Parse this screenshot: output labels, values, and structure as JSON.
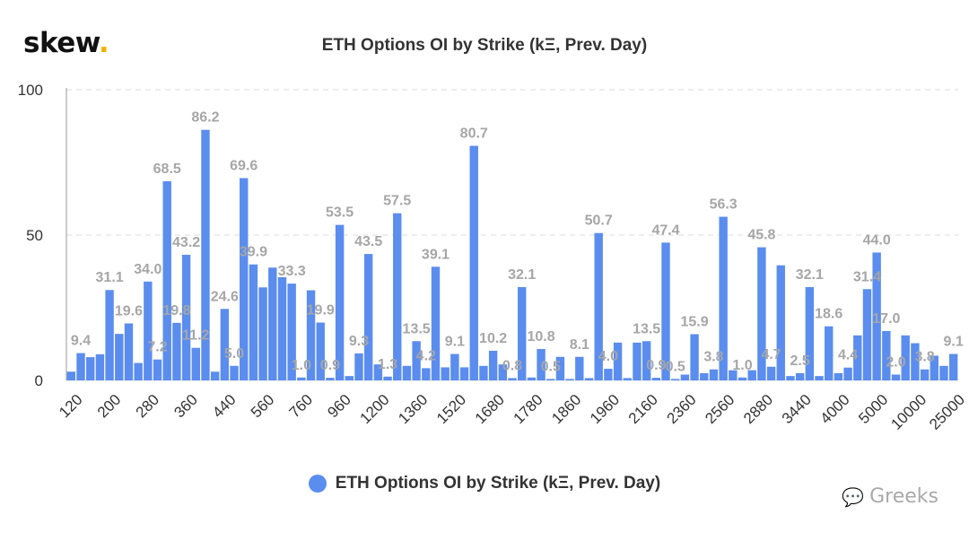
{
  "brand": {
    "name": "skew",
    "dot": "."
  },
  "watermark": {
    "icon": "wechat-icon",
    "text": "Greeks"
  },
  "colors": {
    "bar": "#5b8def",
    "label": "#a6a6a6",
    "axis": "#333333",
    "grid": "#dddddd"
  },
  "chart_data": {
    "type": "bar",
    "title": "ETH Options OI by Strike (kΞ, Prev. Day)",
    "xlabel": "",
    "ylabel": "",
    "ylim": [
      0,
      100
    ],
    "yticks": [
      0,
      50,
      100
    ],
    "grid": "horizontal dashed",
    "legend": "bottom-center",
    "series": [
      {
        "name": "ETH Options OI by Strike (kΞ, Prev. Day)",
        "values": [
          3.0,
          9.4,
          8.0,
          9.0,
          31.1,
          16.0,
          19.6,
          6.0,
          34.0,
          7.2,
          68.5,
          19.8,
          43.2,
          11.2,
          86.2,
          3.0,
          24.6,
          5.0,
          69.6,
          39.9,
          32.0,
          38.8,
          35.5,
          33.3,
          1.0,
          31.0,
          19.9,
          0.9,
          53.5,
          1.5,
          9.3,
          43.5,
          5.5,
          1.3,
          57.5,
          5.0,
          13.5,
          4.2,
          39.1,
          4.5,
          9.1,
          4.5,
          80.7,
          5.0,
          10.2,
          5.5,
          0.8,
          32.1,
          1.0,
          10.8,
          0.5,
          8.1,
          0.5,
          8.1,
          0.8,
          50.7,
          4.0,
          13.0,
          0.8,
          13.0,
          13.5,
          0.9,
          47.4,
          0.5,
          2.0,
          15.9,
          2.5,
          3.8,
          56.3,
          3.5,
          1.0,
          3.5,
          45.8,
          4.7,
          39.6,
          1.5,
          2.5,
          32.1,
          1.5,
          18.6,
          2.5,
          4.4,
          15.5,
          31.4,
          44.0,
          17.0,
          2.0,
          15.5,
          12.8,
          3.8,
          8.5,
          5.0,
          9.1
        ]
      }
    ],
    "data_labels": [
      {
        "i": 1,
        "text": "9.4"
      },
      {
        "i": 4,
        "text": "31.1"
      },
      {
        "i": 6,
        "text": "19.6"
      },
      {
        "i": 8,
        "text": "34.0"
      },
      {
        "i": 9,
        "text": "7.2"
      },
      {
        "i": 10,
        "text": "68.5"
      },
      {
        "i": 11,
        "text": "19.8"
      },
      {
        "i": 12,
        "text": "43.2"
      },
      {
        "i": 13,
        "text": "11.2"
      },
      {
        "i": 14,
        "text": "86.2"
      },
      {
        "i": 16,
        "text": "24.6"
      },
      {
        "i": 17,
        "text": "5.0"
      },
      {
        "i": 18,
        "text": "69.6"
      },
      {
        "i": 19,
        "text": "39.9"
      },
      {
        "i": 23,
        "text": "33.3"
      },
      {
        "i": 24,
        "text": "1.0"
      },
      {
        "i": 26,
        "text": "19.9"
      },
      {
        "i": 27,
        "text": "0.9"
      },
      {
        "i": 28,
        "text": "53.5"
      },
      {
        "i": 30,
        "text": "9.3"
      },
      {
        "i": 31,
        "text": "43.5"
      },
      {
        "i": 33,
        "text": "1.3"
      },
      {
        "i": 34,
        "text": "57.5"
      },
      {
        "i": 36,
        "text": "13.5"
      },
      {
        "i": 37,
        "text": "4.2"
      },
      {
        "i": 38,
        "text": "39.1"
      },
      {
        "i": 40,
        "text": "9.1"
      },
      {
        "i": 42,
        "text": "80.7"
      },
      {
        "i": 44,
        "text": "10.2"
      },
      {
        "i": 46,
        "text": "0.8"
      },
      {
        "i": 47,
        "text": "32.1"
      },
      {
        "i": 49,
        "text": "10.8"
      },
      {
        "i": 50,
        "text": "0.5"
      },
      {
        "i": 53,
        "text": "8.1"
      },
      {
        "i": 55,
        "text": "50.7"
      },
      {
        "i": 56,
        "text": "4.0"
      },
      {
        "i": 60,
        "text": "13.5"
      },
      {
        "i": 61,
        "text": "0.9"
      },
      {
        "i": 62,
        "text": "47.4"
      },
      {
        "i": 63,
        "text": "0.5"
      },
      {
        "i": 65,
        "text": "15.9"
      },
      {
        "i": 67,
        "text": "3.8"
      },
      {
        "i": 68,
        "text": "56.3"
      },
      {
        "i": 70,
        "text": "1.0"
      },
      {
        "i": 72,
        "text": "45.8"
      },
      {
        "i": 73,
        "text": "4.7"
      },
      {
        "i": 76,
        "text": "2.5"
      },
      {
        "i": 77,
        "text": "32.1"
      },
      {
        "i": 79,
        "text": "18.6"
      },
      {
        "i": 81,
        "text": "4.4"
      },
      {
        "i": 83,
        "text": "31.4"
      },
      {
        "i": 84,
        "text": "44.0"
      },
      {
        "i": 85,
        "text": "17.0"
      },
      {
        "i": 86,
        "text": "2.0"
      },
      {
        "i": 89,
        "text": "3.8"
      },
      {
        "i": 92,
        "text": "9.1"
      }
    ],
    "x_tick_labels": [
      {
        "i": 0,
        "text": "120"
      },
      {
        "i": 4,
        "text": "200"
      },
      {
        "i": 8,
        "text": "280"
      },
      {
        "i": 12,
        "text": "360"
      },
      {
        "i": 16,
        "text": "440"
      },
      {
        "i": 20,
        "text": "560"
      },
      {
        "i": 24,
        "text": "760"
      },
      {
        "i": 28,
        "text": "960"
      },
      {
        "i": 32,
        "text": "1200"
      },
      {
        "i": 36,
        "text": "1360"
      },
      {
        "i": 40,
        "text": "1520"
      },
      {
        "i": 44,
        "text": "1680"
      },
      {
        "i": 48,
        "text": "1780"
      },
      {
        "i": 52,
        "text": "1860"
      },
      {
        "i": 56,
        "text": "1960"
      },
      {
        "i": 60,
        "text": "2160"
      },
      {
        "i": 64,
        "text": "2360"
      },
      {
        "i": 68,
        "text": "2560"
      },
      {
        "i": 72,
        "text": "2880"
      },
      {
        "i": 76,
        "text": "3440"
      },
      {
        "i": 80,
        "text": "4000"
      },
      {
        "i": 84,
        "text": "5000"
      },
      {
        "i": 88,
        "text": "10000"
      },
      {
        "i": 92,
        "text": "25000"
      }
    ]
  }
}
